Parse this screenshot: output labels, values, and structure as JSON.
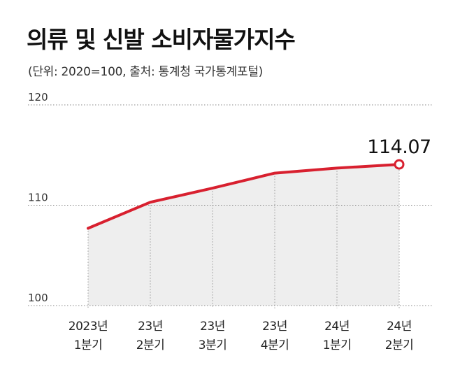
{
  "title": "의류 및 신발 소비자물가지수",
  "subtitle": "(단위: 2020=100, 출처: 통계청 국가통계포털)",
  "colors": {
    "line": "#d8202f",
    "area": "#eeeeee",
    "grid": "#888888",
    "marker_fill": "#ffffff"
  },
  "chart_data": {
    "type": "line",
    "title": "의류 및 신발 소비자물가지수",
    "subtitle": "(단위: 2020=100, 출처: 통계청 국가통계포털)",
    "categories": [
      [
        "2023년",
        "1분기"
      ],
      [
        "23년",
        "2분기"
      ],
      [
        "23년",
        "3분기"
      ],
      [
        "23년",
        "4분기"
      ],
      [
        "24년",
        "1분기"
      ],
      [
        "24년",
        "2분기"
      ]
    ],
    "series": [
      {
        "values": [
          107.7,
          110.3,
          111.7,
          113.2,
          113.7,
          114.07
        ]
      }
    ],
    "yticks": [
      "100",
      "110",
      "120"
    ],
    "ylim": [
      100,
      120
    ],
    "grid": "dotted horizontal",
    "annotation": {
      "index": 5,
      "text": "114.07"
    }
  }
}
